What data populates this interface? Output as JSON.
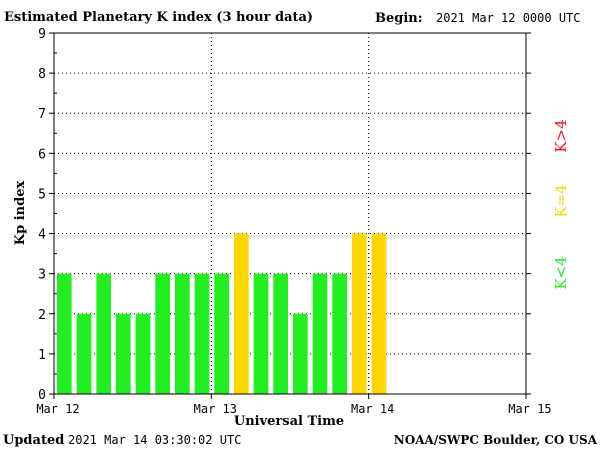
{
  "header": {
    "title": "Estimated Planetary K index (3 hour data)",
    "begin_label": "Begin:",
    "begin_value": "2021 Mar 12 0000 UTC"
  },
  "footer": {
    "updated_label": "Updated",
    "updated_value": "2021 Mar 14 03:30:02 UTC",
    "credit": "NOAA/SWPC Boulder, CO USA"
  },
  "legend": {
    "high": "K>4",
    "equal": "K=4",
    "low": "K<4"
  },
  "colors": {
    "low": "#22ee22",
    "equal": "#ffd700",
    "high": "#ff1010"
  },
  "chart_data": {
    "type": "bar",
    "title": "Estimated Planetary K index (3 hour data)",
    "xlabel": "Universal Time",
    "ylabel": "Kp index",
    "ylim": [
      0,
      9
    ],
    "yticks": [
      "0",
      "1",
      "2",
      "3",
      "4",
      "5",
      "6",
      "7",
      "8",
      "9"
    ],
    "xticks": [
      "Mar 12",
      "Mar 13",
      "Mar 14",
      "Mar 15"
    ],
    "interval_hours": 3,
    "grid": true,
    "categories": [
      "2021-03-12 00:00",
      "2021-03-12 03:00",
      "2021-03-12 06:00",
      "2021-03-12 09:00",
      "2021-03-12 12:00",
      "2021-03-12 15:00",
      "2021-03-12 18:00",
      "2021-03-12 21:00",
      "2021-03-13 00:00",
      "2021-03-13 03:00",
      "2021-03-13 06:00",
      "2021-03-13 09:00",
      "2021-03-13 12:00",
      "2021-03-13 15:00",
      "2021-03-13 18:00",
      "2021-03-13 21:00",
      "2021-03-14 00:00"
    ],
    "values": [
      3,
      2,
      3,
      2,
      2,
      3,
      3,
      3,
      3,
      4,
      3,
      3,
      2,
      3,
      3,
      4,
      4
    ]
  }
}
